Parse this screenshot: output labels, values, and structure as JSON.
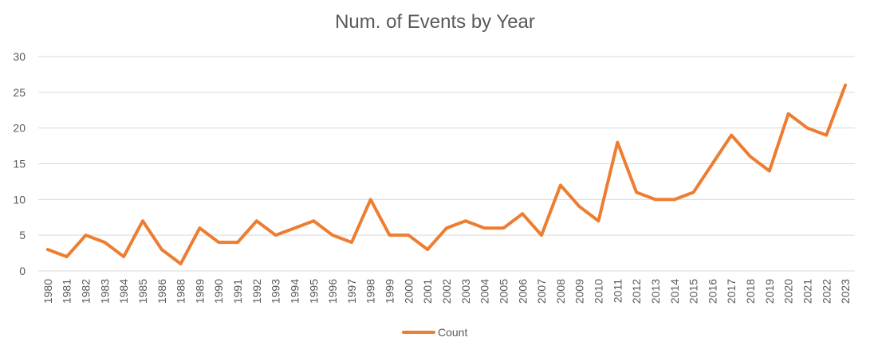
{
  "chart_data": {
    "type": "line",
    "title": "Num. of Events by Year",
    "xlabel": "",
    "ylabel": "",
    "ylim": [
      0,
      30
    ],
    "yticks": [
      0,
      5,
      10,
      15,
      20,
      25,
      30
    ],
    "grid": true,
    "legend_position": "bottom",
    "categories": [
      "1980",
      "1981",
      "1982",
      "1983",
      "1984",
      "1985",
      "1986",
      "1988",
      "1989",
      "1990",
      "1991",
      "1992",
      "1993",
      "1994",
      "1995",
      "1996",
      "1997",
      "1998",
      "1999",
      "2000",
      "2001",
      "2002",
      "2003",
      "2004",
      "2005",
      "2006",
      "2007",
      "2008",
      "2009",
      "2010",
      "2011",
      "2012",
      "2013",
      "2014",
      "2015",
      "2016",
      "2017",
      "2018",
      "2019",
      "2020",
      "2021",
      "2022",
      "2023"
    ],
    "series": [
      {
        "name": "Count",
        "color": "#ED7D31",
        "values": [
          3,
          2,
          5,
          4,
          2,
          7,
          3,
          1,
          6,
          4,
          4,
          7,
          5,
          6,
          7,
          5,
          4,
          10,
          5,
          5,
          3,
          6,
          7,
          6,
          6,
          8,
          5,
          12,
          9,
          7,
          18,
          11,
          10,
          10,
          11,
          15,
          19,
          16,
          14,
          22,
          20,
          19,
          26
        ]
      }
    ]
  }
}
